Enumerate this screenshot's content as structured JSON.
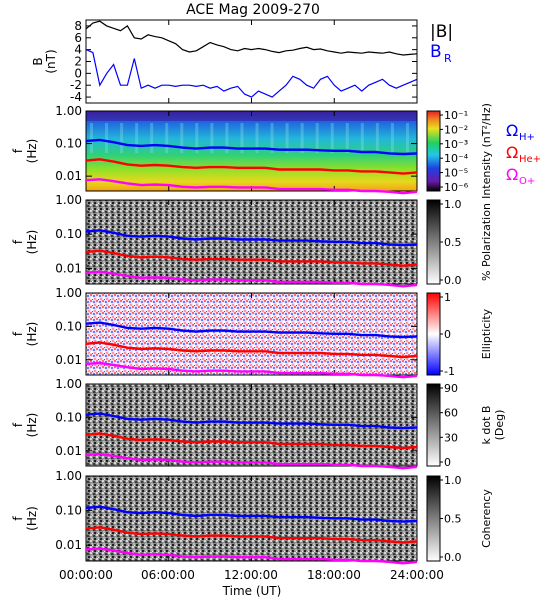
{
  "title": "ACE Mag 2009-270",
  "xlabel": "Time (UT)",
  "x_ticks": [
    "00:00:00",
    "06:00:00",
    "12:00:00",
    "18:00:00",
    "24:00:00"
  ],
  "x_tick_hours": [
    0,
    6,
    12,
    18,
    24
  ],
  "colors": {
    "babs": "#000000",
    "br": "#0000ff",
    "h_plus": "#0000ff",
    "he_plus": "#ff0000",
    "o_plus": "#ff00ff",
    "coherence_scale": "gray",
    "intensity_scale": "rainbow",
    "ellipticity_scale": "blue-white-red"
  },
  "chart_data": [
    {
      "type": "line",
      "panel": "B",
      "ylabel_top": "B",
      "ylabel_bottom": "(nT)",
      "ylim": [
        -5,
        9
      ],
      "y_ticks": [
        "8",
        "6",
        "4",
        "2",
        "0",
        "-2",
        "-4"
      ],
      "y_tick_values": [
        8,
        6,
        4,
        2,
        0,
        -2,
        -4
      ],
      "legend": [
        "|B|",
        "B_R"
      ],
      "legend_b": "|B|",
      "legend_br": "B",
      "legend_br_sub": "R",
      "x_hours": [
        0,
        0.5,
        1,
        1.5,
        2,
        2.5,
        3,
        3.5,
        4,
        4.5,
        5,
        5.5,
        6,
        6.5,
        7,
        7.5,
        8,
        8.5,
        9,
        9.5,
        10,
        10.5,
        11,
        11.5,
        12,
        12.5,
        13,
        13.5,
        14,
        14.5,
        15,
        15.5,
        16,
        16.5,
        17,
        17.5,
        18,
        18.5,
        19,
        19.5,
        20,
        20.5,
        21,
        21.5,
        22,
        22.5,
        23,
        23.5,
        24
      ],
      "series": [
        {
          "name": "|B|",
          "values": [
            7.5,
            8.5,
            8.8,
            8.0,
            7.6,
            7.2,
            8.0,
            6.0,
            5.8,
            6.5,
            6.2,
            6.0,
            5.5,
            5.0,
            4.0,
            3.6,
            3.8,
            4.5,
            5.2,
            4.8,
            4.5,
            4.0,
            3.8,
            4.2,
            4.0,
            4.2,
            4.0,
            3.7,
            3.5,
            3.8,
            3.9,
            4.2,
            4.4,
            4.0,
            4.1,
            3.8,
            3.6,
            3.4,
            3.6,
            3.5,
            3.4,
            3.6,
            3.5,
            3.4,
            3.6,
            3.3,
            3.1,
            3.2,
            3.3
          ]
        },
        {
          "name": "B_R",
          "values": [
            4.0,
            3.5,
            -2.0,
            0.0,
            1.5,
            -2.0,
            -2.0,
            2.5,
            -2.5,
            -2.0,
            -2.5,
            -2.0,
            -2.0,
            -2.2,
            -2.0,
            -2.0,
            -2.2,
            -2.0,
            -2.5,
            -2.2,
            -3.0,
            -2.5,
            -2.2,
            -3.5,
            -4.0,
            -3.0,
            -3.5,
            -4.0,
            -3.0,
            -2.0,
            -0.5,
            -1.0,
            -2.0,
            -2.5,
            -1.0,
            -0.5,
            -2.0,
            -3.0,
            -2.5,
            -2.0,
            -3.0,
            -2.0,
            -1.5,
            -1.0,
            -2.0,
            -2.5,
            -2.0,
            -1.5,
            -1.0
          ]
        }
      ]
    },
    {
      "type": "heatmap",
      "panel": "Intensity",
      "ylabel_top": "f",
      "ylabel_bottom": "(Hz)",
      "y_scale": "log",
      "ylim": [
        0.0035,
        1.0
      ],
      "y_ticks": [
        "1.00",
        "0.10",
        "0.01"
      ],
      "y_tick_values": [
        1.0,
        0.1,
        0.01
      ],
      "colorbar_label": "Intensity (nT²/Hz)",
      "colorbar_ticks": [
        "10⁻¹",
        "10⁻²",
        "10⁻³",
        "10⁻⁴",
        "10⁻⁵",
        "10⁻⁶"
      ],
      "colorbar_scale": "rainbow",
      "gyro_labels": [
        {
          "text": "Ω",
          "sub": "H+"
        },
        {
          "text": "Ω",
          "sub": "He+"
        },
        {
          "text": "Ω",
          "sub": "O+"
        }
      ]
    },
    {
      "type": "heatmap",
      "panel": "% Polarization",
      "ylabel_top": "f",
      "ylabel_bottom": "(Hz)",
      "y_scale": "log",
      "ylim": [
        0.0035,
        1.0
      ],
      "y_ticks": [
        "1.00",
        "0.10",
        "0.01"
      ],
      "y_tick_values": [
        1.0,
        0.1,
        0.01
      ],
      "colorbar_label": "% Polarization",
      "colorbar_ticks": [
        "1.0",
        "0.5",
        "0.0"
      ],
      "colorbar_scale": "gray"
    },
    {
      "type": "heatmap",
      "panel": "Ellipticity",
      "ylabel_top": "f",
      "ylabel_bottom": "(Hz)",
      "y_scale": "log",
      "ylim": [
        0.0035,
        1.0
      ],
      "y_ticks": [
        "1.00",
        "0.10",
        "0.01"
      ],
      "y_tick_values": [
        1.0,
        0.1,
        0.01
      ],
      "colorbar_label": "Ellipticity",
      "colorbar_ticks": [
        "1",
        "0",
        "-1"
      ],
      "colorbar_scale": "blue-white-red"
    },
    {
      "type": "heatmap",
      "panel": "k dot B",
      "ylabel_top": "f",
      "ylabel_bottom": "(Hz)",
      "y_scale": "log",
      "ylim": [
        0.0035,
        1.0
      ],
      "y_ticks": [
        "1.00",
        "0.10",
        "0.01"
      ],
      "y_tick_values": [
        1.0,
        0.1,
        0.01
      ],
      "colorbar_label": "k dot B",
      "colorbar_label2": "(Deg)",
      "colorbar_ticks": [
        "90",
        "60",
        "30",
        "0"
      ],
      "colorbar_scale": "gray"
    },
    {
      "type": "heatmap",
      "panel": "Coherency",
      "ylabel_top": "f",
      "ylabel_bottom": "(Hz)",
      "y_scale": "log",
      "ylim": [
        0.0035,
        1.0
      ],
      "y_ticks": [
        "1.00",
        "0.10",
        "0.01"
      ],
      "y_tick_values": [
        1.0,
        0.1,
        0.01
      ],
      "colorbar_label": "Coherency",
      "colorbar_ticks": [
        "1.0",
        "0.5",
        "0.0"
      ],
      "colorbar_scale": "gray"
    },
    {
      "type": "line",
      "panel": "gyrofrequency overlays",
      "x_hours": [
        0,
        1,
        2,
        3,
        4,
        5,
        6,
        7,
        8,
        9,
        10,
        11,
        12,
        13,
        14,
        15,
        16,
        17,
        18,
        19,
        20,
        21,
        22,
        23,
        24
      ],
      "series": [
        {
          "name": "ΩH+",
          "values": [
            0.12,
            0.13,
            0.11,
            0.09,
            0.085,
            0.09,
            0.085,
            0.075,
            0.07,
            0.075,
            0.075,
            0.07,
            0.07,
            0.07,
            0.065,
            0.065,
            0.065,
            0.062,
            0.06,
            0.06,
            0.055,
            0.055,
            0.05,
            0.048,
            0.05
          ]
        },
        {
          "name": "ΩHe+",
          "values": [
            0.03,
            0.033,
            0.028,
            0.023,
            0.021,
            0.022,
            0.021,
            0.019,
            0.018,
            0.019,
            0.019,
            0.018,
            0.018,
            0.018,
            0.016,
            0.016,
            0.016,
            0.016,
            0.015,
            0.015,
            0.014,
            0.014,
            0.013,
            0.012,
            0.013
          ]
        },
        {
          "name": "ΩO+",
          "values": [
            0.0075,
            0.008,
            0.007,
            0.006,
            0.0053,
            0.0055,
            0.0053,
            0.0047,
            0.0045,
            0.0047,
            0.0047,
            0.0045,
            0.0045,
            0.0045,
            0.004,
            0.004,
            0.004,
            0.004,
            0.0038,
            0.0038,
            0.0035,
            0.0035,
            0.0033,
            0.003,
            0.0033
          ]
        }
      ]
    }
  ]
}
